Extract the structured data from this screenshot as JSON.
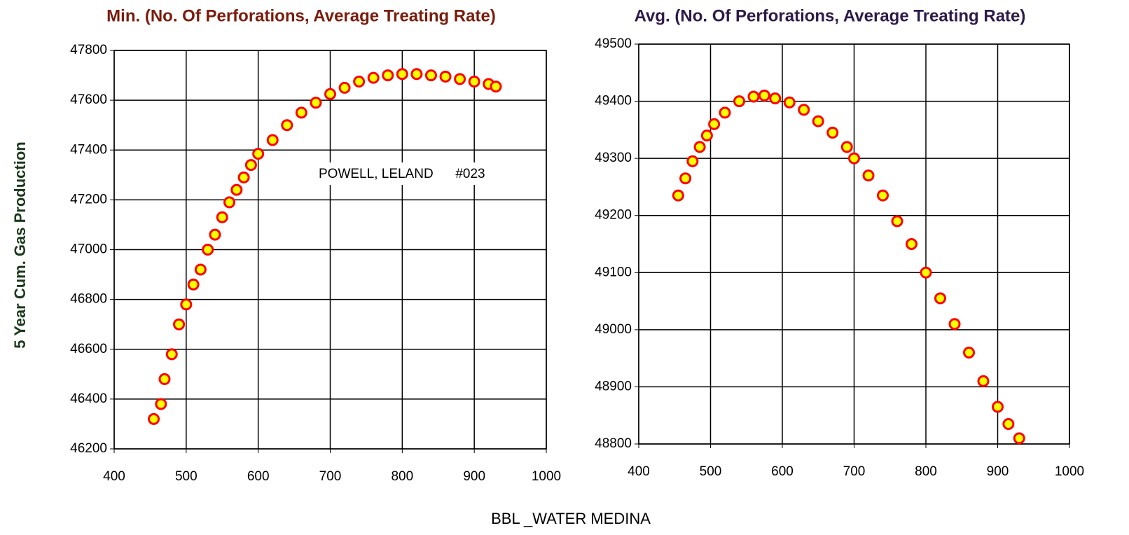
{
  "xlabel": "BBL _WATER MEDINA",
  "ylabel": "5 Year Cum. Gas Production",
  "chart_data": [
    {
      "type": "scatter",
      "title": "Min. (No. Of Perforations, Average Treating Rate)",
      "title_color": "#7a1c0c",
      "marker_color": "#ffff00",
      "marker_edge": "#ff0000",
      "grid": true,
      "annotations": [
        "POWELL, LELAND      #023"
      ],
      "xlim": [
        400,
        1000
      ],
      "xticks": [
        400,
        500,
        600,
        700,
        800,
        900,
        1000
      ],
      "ylim": [
        46200,
        47800
      ],
      "yticks": [
        46200,
        46400,
        46600,
        46800,
        47000,
        47200,
        47400,
        47600,
        47800
      ],
      "x": [
        455,
        465,
        470,
        480,
        490,
        500,
        510,
        520,
        530,
        540,
        550,
        560,
        570,
        580,
        590,
        600,
        620,
        640,
        660,
        680,
        700,
        720,
        740,
        760,
        780,
        800,
        820,
        840,
        860,
        880,
        900,
        920,
        930
      ],
      "values": [
        46320,
        46380,
        46480,
        46580,
        46700,
        46780,
        46860,
        46920,
        47000,
        47060,
        47130,
        47190,
        47240,
        47290,
        47340,
        47385,
        47440,
        47500,
        47550,
        47590,
        47625,
        47650,
        47675,
        47690,
        47700,
        47705,
        47705,
        47700,
        47695,
        47685,
        47675,
        47665,
        47655
      ]
    },
    {
      "type": "scatter",
      "title": "Avg. (No. Of Perforations, Average Treating Rate)",
      "title_color": "#2e1a4a",
      "marker_color": "#ffff00",
      "marker_edge": "#ff0000",
      "grid": true,
      "xlim": [
        400,
        1000
      ],
      "xticks": [
        400,
        500,
        600,
        700,
        800,
        900,
        1000
      ],
      "ylim": [
        48800,
        49500
      ],
      "yticks": [
        48800,
        48900,
        49000,
        49100,
        49200,
        49300,
        49400,
        49500
      ],
      "x": [
        455,
        465,
        475,
        485,
        495,
        505,
        520,
        540,
        560,
        575,
        590,
        610,
        630,
        650,
        670,
        690,
        700,
        720,
        740,
        760,
        780,
        800,
        820,
        840,
        860,
        880,
        900,
        915,
        930
      ],
      "values": [
        49235,
        49265,
        49295,
        49320,
        49340,
        49360,
        49380,
        49400,
        49408,
        49410,
        49405,
        49398,
        49385,
        49365,
        49345,
        49320,
        49300,
        49270,
        49235,
        49190,
        49150,
        49100,
        49055,
        49010,
        48960,
        48910,
        48865,
        48835,
        48810
      ]
    }
  ]
}
